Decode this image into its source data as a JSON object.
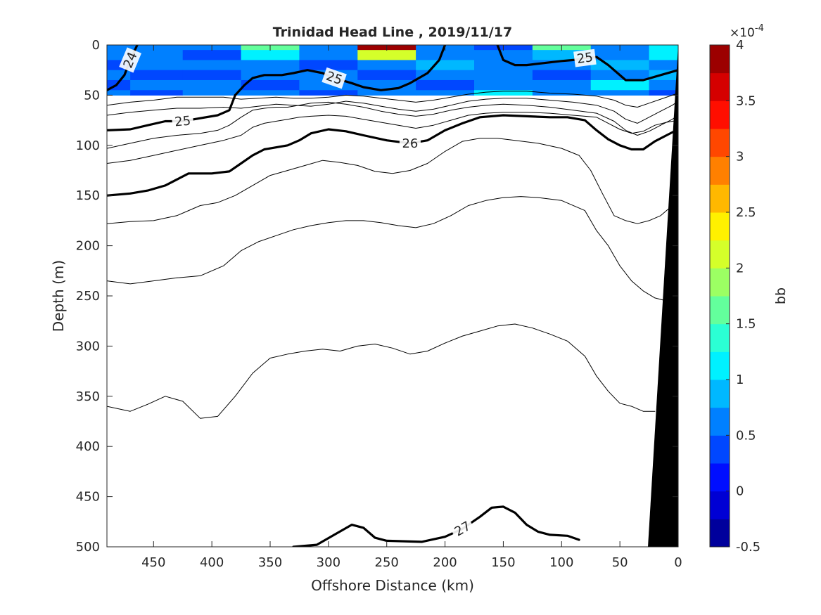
{
  "chart_data": {
    "type": "heatmap",
    "title": "Trinidad Head Line , 2019/11/17",
    "xlabel": "Offshore Distance (km)",
    "ylabel": "Depth (m)",
    "xlim": [
      490,
      0
    ],
    "ylim": [
      0,
      500
    ],
    "x_reversed": true,
    "y_reversed": true,
    "x_ticks": [
      450,
      400,
      350,
      300,
      250,
      200,
      150,
      100,
      50,
      0
    ],
    "y_ticks": [
      0,
      50,
      100,
      150,
      200,
      250,
      300,
      350,
      400,
      450,
      500
    ],
    "colorbar": {
      "label": "bb",
      "exponent_label": "×10",
      "exponent": "-4",
      "clim": [
        -0.5,
        4
      ],
      "ticks": [
        "4",
        "3.5",
        "3",
        "2.5",
        "2",
        "1.5",
        "1",
        "0.5",
        "0",
        "-0.5"
      ],
      "colormap": "jet"
    },
    "bb_field": {
      "depth_range": [
        0,
        50
      ],
      "x": [
        490,
        450,
        400,
        350,
        300,
        250,
        200,
        150,
        100,
        50,
        0
      ],
      "depths": [
        0,
        10,
        20,
        30,
        40,
        50
      ],
      "values": [
        [
          0.6,
          0.5,
          0.6,
          1.5,
          0.5,
          4.0,
          0.6,
          0.4,
          1.5,
          0.7,
          1.2
        ],
        [
          0.5,
          0.7,
          0.4,
          1.0,
          0.6,
          2.0,
          0.5,
          0.6,
          0.8,
          0.5,
          1.0
        ],
        [
          0.4,
          0.5,
          0.6,
          0.5,
          0.4,
          0.6,
          0.8,
          0.5,
          0.5,
          0.8,
          0.6
        ],
        [
          0.5,
          0.4,
          0.4,
          0.6,
          0.5,
          0.4,
          0.5,
          0.6,
          0.4,
          0.5,
          0.8
        ],
        [
          0.4,
          0.6,
          0.5,
          0.4,
          0.6,
          0.5,
          0.4,
          0.5,
          0.6,
          1.0,
          0.5
        ],
        [
          0.5,
          0.4,
          0.6,
          0.5,
          0.4,
          0.6,
          0.5,
          1.0,
          0.5,
          0.7,
          0.4
        ]
      ]
    },
    "contours": [
      {
        "level": 24,
        "bold": true,
        "label": "24",
        "x": [
          490,
          482,
          475,
          470,
          466,
          464
        ],
        "y": [
          45,
          40,
          30,
          15,
          5,
          0
        ]
      },
      {
        "level": 25,
        "bold": true,
        "label": "25",
        "x": [
          380,
          372,
          365,
          355,
          340,
          330,
          318,
          305,
          295,
          280,
          270,
          255,
          240,
          230,
          215,
          205,
          200
        ],
        "y": [
          50,
          40,
          33,
          30,
          30,
          28,
          25,
          28,
          33,
          38,
          42,
          45,
          43,
          38,
          28,
          15,
          0
        ]
      },
      {
        "level": 25,
        "bold": true,
        "label": "25",
        "x": [
          155,
          150,
          140,
          130,
          115,
          100,
          90,
          80,
          70,
          60,
          45,
          30,
          15,
          0
        ],
        "y": [
          0,
          15,
          20,
          20,
          18,
          16,
          15,
          13,
          12,
          20,
          35,
          35,
          30,
          25
        ]
      },
      {
        "level": 25,
        "bold": true,
        "label": "25",
        "x": [
          490,
          470,
          455,
          440,
          425,
          410,
          395,
          385,
          380
        ],
        "y": [
          85,
          84,
          80,
          76,
          76,
          73,
          70,
          65,
          50
        ]
      },
      {
        "level": 26,
        "bold": true,
        "label": "26",
        "x": [
          490,
          470,
          455,
          440,
          420,
          400,
          385,
          375,
          365,
          355,
          345,
          335,
          325,
          315,
          300,
          285,
          270,
          250,
          230,
          215,
          200,
          185,
          170,
          150,
          130,
          110,
          95,
          80,
          70,
          60,
          50,
          40,
          30,
          20,
          10,
          0
        ],
        "y": [
          150,
          148,
          145,
          140,
          128,
          128,
          126,
          118,
          110,
          104,
          102,
          100,
          95,
          88,
          84,
          86,
          90,
          95,
          98,
          95,
          85,
          78,
          72,
          70,
          71,
          72,
          72,
          75,
          85,
          94,
          100,
          104,
          104,
          96,
          90,
          84
        ]
      },
      {
        "level": 27,
        "bold": true,
        "label": "27",
        "x": [
          330,
          310,
          295,
          280,
          270,
          260,
          250,
          220,
          200,
          185,
          170,
          160,
          150,
          140,
          130,
          120,
          110,
          95,
          85
        ],
        "y": [
          500,
          498,
          488,
          478,
          481,
          491,
          494,
          495,
          490,
          482,
          470,
          461,
          460,
          466,
          478,
          485,
          488,
          489,
          493
        ]
      },
      {
        "level": 25.2,
        "bold": false,
        "x": [
          490,
          470,
          450,
          430,
          410,
          390,
          375,
          360,
          345,
          330,
          315,
          300,
          285,
          270,
          255,
          240,
          225,
          210,
          195,
          180,
          165,
          150,
          130,
          110,
          90,
          70,
          55,
          45,
          35,
          25,
          15,
          5,
          0
        ],
        "y": [
          60,
          57,
          55,
          52,
          52,
          52,
          54,
          53,
          52,
          53,
          53,
          52,
          50,
          51,
          53,
          55,
          57,
          55,
          52,
          49,
          47,
          46,
          46,
          48,
          49,
          51,
          55,
          60,
          62,
          58,
          54,
          50,
          48
        ]
      },
      {
        "level": 25.4,
        "bold": false,
        "x": [
          490,
          470,
          450,
          430,
          410,
          390,
          375,
          360,
          345,
          330,
          315,
          300,
          285,
          270,
          255,
          240,
          225,
          210,
          195,
          180,
          165,
          150,
          130,
          110,
          90,
          70,
          55,
          45,
          35,
          25,
          15,
          5,
          0
        ],
        "y": [
          70,
          67,
          65,
          63,
          63,
          62,
          63,
          61,
          59,
          60,
          61,
          59,
          56,
          58,
          61,
          64,
          66,
          64,
          60,
          56,
          54,
          53,
          53,
          55,
          57,
          60,
          66,
          74,
          78,
          72,
          66,
          60,
          56
        ]
      },
      {
        "level": 25.6,
        "bold": false,
        "x": [
          490,
          470,
          450,
          430,
          410,
          395,
          385,
          375,
          365,
          355,
          345,
          335,
          325,
          315,
          300,
          285,
          270,
          255,
          240,
          225,
          210,
          195,
          180,
          165,
          150,
          130,
          110,
          90,
          70,
          55,
          45,
          35,
          25,
          15,
          5,
          0
        ],
        "y": [
          103,
          98,
          93,
          90,
          88,
          85,
          80,
          72,
          65,
          63,
          62,
          62,
          60,
          58,
          57,
          59,
          62,
          66,
          69,
          71,
          69,
          65,
          62,
          60,
          59,
          60,
          62,
          65,
          68,
          76,
          85,
          90,
          86,
          80,
          74,
          70
        ]
      },
      {
        "level": 25.8,
        "bold": false,
        "x": [
          490,
          470,
          450,
          430,
          410,
          390,
          375,
          365,
          355,
          345,
          335,
          325,
          315,
          300,
          285,
          270,
          255,
          240,
          225,
          210,
          195,
          180,
          165,
          150,
          130,
          110,
          90,
          70,
          60,
          50,
          40,
          30,
          20,
          10,
          0
        ],
        "y": [
          118,
          115,
          110,
          105,
          100,
          95,
          90,
          82,
          78,
          76,
          74,
          72,
          71,
          70,
          71,
          74,
          77,
          80,
          83,
          80,
          75,
          70,
          68,
          67,
          67,
          68,
          70,
          72,
          78,
          84,
          88,
          86,
          80,
          77,
          75
        ]
      },
      {
        "level": 26.2,
        "bold": false,
        "x": [
          490,
          470,
          450,
          430,
          410,
          395,
          380,
          365,
          350,
          335,
          320,
          305,
          290,
          275,
          260,
          245,
          230,
          215,
          200,
          185,
          170,
          155,
          140,
          120,
          100,
          85,
          75,
          65,
          55,
          45,
          35,
          25,
          15,
          5,
          0
        ],
        "y": [
          178,
          176,
          175,
          170,
          160,
          157,
          150,
          140,
          130,
          125,
          120,
          115,
          117,
          120,
          126,
          128,
          125,
          118,
          106,
          96,
          93,
          93,
          95,
          98,
          103,
          110,
          125,
          148,
          170,
          175,
          178,
          175,
          170,
          160,
          155
        ]
      },
      {
        "level": 26.4,
        "bold": false,
        "x": [
          490,
          470,
          450,
          430,
          410,
          390,
          375,
          360,
          345,
          330,
          315,
          300,
          285,
          270,
          255,
          240,
          225,
          210,
          195,
          180,
          165,
          150,
          135,
          120,
          100,
          80,
          70,
          60,
          50,
          40,
          30,
          20,
          10
        ],
        "y": [
          235,
          238,
          235,
          232,
          230,
          220,
          205,
          196,
          190,
          184,
          180,
          177,
          175,
          175,
          177,
          180,
          182,
          178,
          170,
          160,
          155,
          152,
          151,
          152,
          155,
          165,
          185,
          200,
          220,
          235,
          245,
          252,
          255
        ]
      },
      {
        "level": 26.6,
        "bold": false,
        "x": [
          490,
          470,
          455,
          440,
          425,
          410,
          395,
          380,
          365,
          350,
          335,
          320,
          305,
          290,
          275,
          260,
          245,
          230,
          215,
          200,
          185,
          170,
          155,
          140,
          125,
          110,
          95,
          80,
          70,
          60,
          50,
          40,
          30,
          20
        ],
        "y": [
          360,
          365,
          358,
          350,
          355,
          372,
          370,
          350,
          327,
          312,
          308,
          305,
          303,
          305,
          300,
          298,
          302,
          308,
          305,
          297,
          290,
          285,
          280,
          278,
          282,
          288,
          295,
          310,
          330,
          345,
          357,
          360,
          365,
          365
        ]
      }
    ]
  }
}
